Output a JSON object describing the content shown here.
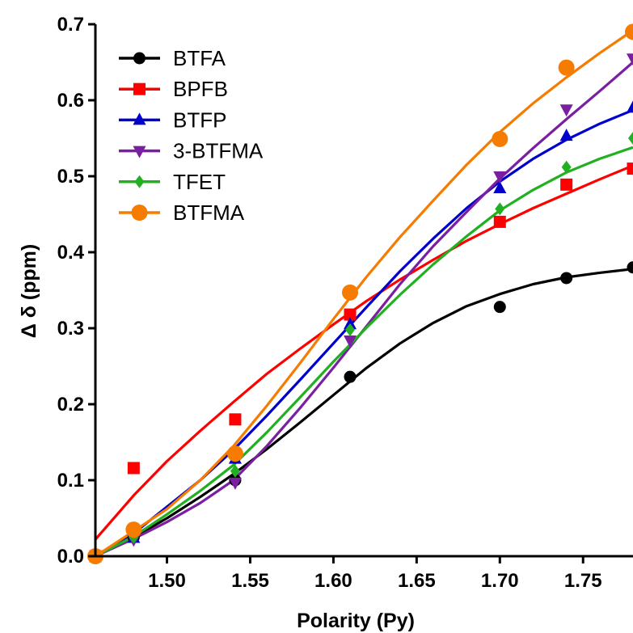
{
  "chart_data": {
    "type": "scatter",
    "xlabel": "Polarity (Py)",
    "ylabel": "Δ δ (ppm)",
    "xlim": [
      1.457,
      1.78
    ],
    "ylim": [
      0.0,
      0.7
    ],
    "xticks": [
      1.5,
      1.55,
      1.6,
      1.65,
      1.7,
      1.75
    ],
    "xtick_labels": [
      "1.50",
      "1.55",
      "1.60",
      "1.65",
      "1.70",
      "1.75"
    ],
    "yticks": [
      0.0,
      0.1,
      0.2,
      0.3,
      0.4,
      0.5,
      0.6,
      0.7
    ],
    "ytick_labels": [
      "0.0",
      "0.1",
      "0.2",
      "0.3",
      "0.4",
      "0.5",
      "0.6",
      "0.7"
    ],
    "grid": false,
    "legend_position": "top-left",
    "series": [
      {
        "name": "BTFA",
        "color": "#000000",
        "marker": "circle",
        "points": [
          [
            1.457,
            0.0
          ],
          [
            1.48,
            0.025
          ],
          [
            1.541,
            0.1
          ],
          [
            1.61,
            0.236
          ],
          [
            1.7,
            0.328
          ],
          [
            1.74,
            0.366
          ],
          [
            1.78,
            0.38
          ]
        ],
        "fit": [
          [
            1.457,
            0.0
          ],
          [
            1.48,
            0.025
          ],
          [
            1.5,
            0.05
          ],
          [
            1.52,
            0.078
          ],
          [
            1.54,
            0.108
          ],
          [
            1.56,
            0.141
          ],
          [
            1.58,
            0.176
          ],
          [
            1.6,
            0.212
          ],
          [
            1.62,
            0.248
          ],
          [
            1.64,
            0.28
          ],
          [
            1.66,
            0.307
          ],
          [
            1.68,
            0.329
          ],
          [
            1.7,
            0.345
          ],
          [
            1.72,
            0.358
          ],
          [
            1.74,
            0.367
          ],
          [
            1.76,
            0.373
          ],
          [
            1.78,
            0.378
          ]
        ]
      },
      {
        "name": "BPFB",
        "color": "#ff0000",
        "marker": "square",
        "points": [
          [
            1.457,
            0.0
          ],
          [
            1.48,
            0.116
          ],
          [
            1.541,
            0.18
          ],
          [
            1.61,
            0.318
          ],
          [
            1.7,
            0.44
          ],
          [
            1.74,
            0.489
          ],
          [
            1.78,
            0.51
          ]
        ],
        "fit": [
          [
            1.457,
            0.022
          ],
          [
            1.48,
            0.08
          ],
          [
            1.5,
            0.125
          ],
          [
            1.52,
            0.165
          ],
          [
            1.54,
            0.203
          ],
          [
            1.56,
            0.24
          ],
          [
            1.58,
            0.273
          ],
          [
            1.6,
            0.305
          ],
          [
            1.62,
            0.336
          ],
          [
            1.64,
            0.364
          ],
          [
            1.66,
            0.39
          ],
          [
            1.68,
            0.415
          ],
          [
            1.7,
            0.437
          ],
          [
            1.72,
            0.458
          ],
          [
            1.74,
            0.477
          ],
          [
            1.76,
            0.496
          ],
          [
            1.78,
            0.514
          ]
        ]
      },
      {
        "name": "BTFP",
        "color": "#0000cc",
        "marker": "triangle-up",
        "points": [
          [
            1.457,
            0.0
          ],
          [
            1.48,
            0.024
          ],
          [
            1.541,
            0.128
          ],
          [
            1.61,
            0.305
          ],
          [
            1.7,
            0.484
          ],
          [
            1.74,
            0.553
          ],
          [
            1.78,
            0.59
          ]
        ],
        "fit": [
          [
            1.457,
            0.0
          ],
          [
            1.48,
            0.03
          ],
          [
            1.5,
            0.065
          ],
          [
            1.52,
            0.1
          ],
          [
            1.54,
            0.14
          ],
          [
            1.56,
            0.185
          ],
          [
            1.58,
            0.232
          ],
          [
            1.6,
            0.28
          ],
          [
            1.62,
            0.328
          ],
          [
            1.64,
            0.375
          ],
          [
            1.66,
            0.418
          ],
          [
            1.68,
            0.458
          ],
          [
            1.7,
            0.493
          ],
          [
            1.72,
            0.523
          ],
          [
            1.74,
            0.548
          ],
          [
            1.76,
            0.569
          ],
          [
            1.78,
            0.587
          ]
        ]
      },
      {
        "name": "3-BTFMA",
        "color": "#7b1fa2",
        "marker": "triangle-down",
        "points": [
          [
            1.457,
            0.0
          ],
          [
            1.48,
            0.022
          ],
          [
            1.541,
            0.097
          ],
          [
            1.61,
            0.284
          ],
          [
            1.7,
            0.5
          ],
          [
            1.74,
            0.588
          ],
          [
            1.78,
            0.655
          ]
        ],
        "fit": [
          [
            1.457,
            0.0
          ],
          [
            1.48,
            0.023
          ],
          [
            1.5,
            0.045
          ],
          [
            1.52,
            0.07
          ],
          [
            1.54,
            0.1
          ],
          [
            1.56,
            0.145
          ],
          [
            1.58,
            0.195
          ],
          [
            1.6,
            0.248
          ],
          [
            1.62,
            0.303
          ],
          [
            1.64,
            0.358
          ],
          [
            1.66,
            0.408
          ],
          [
            1.68,
            0.453
          ],
          [
            1.7,
            0.497
          ],
          [
            1.72,
            0.537
          ],
          [
            1.74,
            0.575
          ],
          [
            1.76,
            0.612
          ],
          [
            1.78,
            0.65
          ]
        ]
      },
      {
        "name": "TFET",
        "color": "#22b022",
        "marker": "diamond",
        "points": [
          [
            1.457,
            0.0
          ],
          [
            1.48,
            0.025
          ],
          [
            1.541,
            0.112
          ],
          [
            1.61,
            0.298
          ],
          [
            1.7,
            0.457
          ],
          [
            1.74,
            0.512
          ],
          [
            1.78,
            0.55
          ]
        ],
        "fit": [
          [
            1.457,
            0.0
          ],
          [
            1.48,
            0.026
          ],
          [
            1.5,
            0.055
          ],
          [
            1.52,
            0.086
          ],
          [
            1.54,
            0.12
          ],
          [
            1.56,
            0.163
          ],
          [
            1.58,
            0.209
          ],
          [
            1.6,
            0.256
          ],
          [
            1.62,
            0.301
          ],
          [
            1.64,
            0.344
          ],
          [
            1.66,
            0.384
          ],
          [
            1.68,
            0.421
          ],
          [
            1.7,
            0.455
          ],
          [
            1.72,
            0.482
          ],
          [
            1.74,
            0.505
          ],
          [
            1.76,
            0.523
          ],
          [
            1.78,
            0.538
          ]
        ]
      },
      {
        "name": "BTFMA",
        "color": "#f57c00",
        "marker": "circle-large",
        "points": [
          [
            1.457,
            0.0
          ],
          [
            1.48,
            0.035
          ],
          [
            1.541,
            0.135
          ],
          [
            1.61,
            0.347
          ],
          [
            1.7,
            0.549
          ],
          [
            1.74,
            0.643
          ],
          [
            1.78,
            0.69
          ]
        ],
        "fit": [
          [
            1.457,
            0.0
          ],
          [
            1.48,
            0.033
          ],
          [
            1.5,
            0.062
          ],
          [
            1.52,
            0.1
          ],
          [
            1.54,
            0.145
          ],
          [
            1.56,
            0.198
          ],
          [
            1.58,
            0.254
          ],
          [
            1.6,
            0.312
          ],
          [
            1.62,
            0.368
          ],
          [
            1.64,
            0.42
          ],
          [
            1.66,
            0.468
          ],
          [
            1.68,
            0.515
          ],
          [
            1.7,
            0.558
          ],
          [
            1.72,
            0.596
          ],
          [
            1.74,
            0.63
          ],
          [
            1.76,
            0.662
          ],
          [
            1.78,
            0.692
          ]
        ]
      }
    ]
  }
}
